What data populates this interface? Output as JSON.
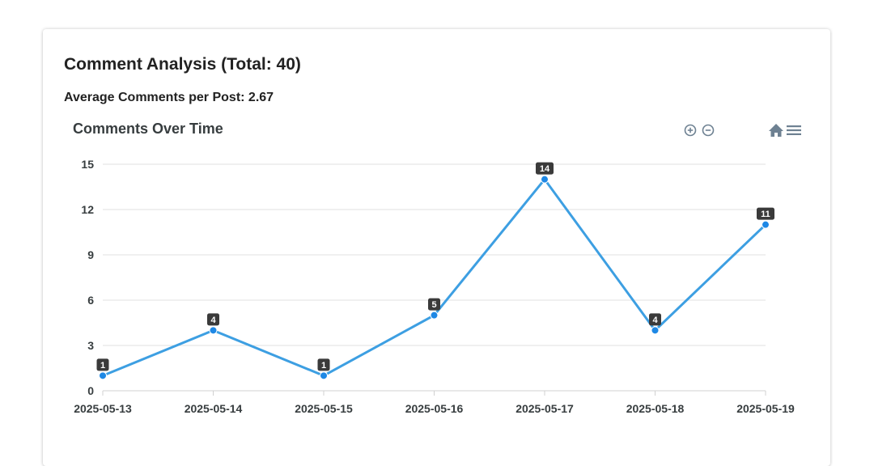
{
  "card": {
    "title": "Comment Analysis (Total: 40)",
    "average_text": "Average Comments per Post: 2.67"
  },
  "toolbar": {
    "icons": [
      "zoom-in-icon",
      "zoom-out-icon",
      "home-icon",
      "menu-icon"
    ]
  },
  "colors": {
    "line": "#3d9fe2",
    "marker": "#1e88e5",
    "label_bg": "#3a3a3a",
    "grid": "#e0e0e0",
    "toolbar": "#6e8192"
  },
  "chart_data": {
    "type": "line",
    "title": "Comments Over Time",
    "categories": [
      "2025-05-13",
      "2025-05-14",
      "2025-05-15",
      "2025-05-16",
      "2025-05-17",
      "2025-05-18",
      "2025-05-19"
    ],
    "series": [
      {
        "values": [
          1,
          4,
          1,
          5,
          14,
          4,
          11
        ]
      }
    ],
    "ylim": [
      0,
      15
    ],
    "yticks": [
      0,
      3,
      6,
      9,
      12,
      15
    ],
    "grid": true,
    "data_labels": true
  }
}
